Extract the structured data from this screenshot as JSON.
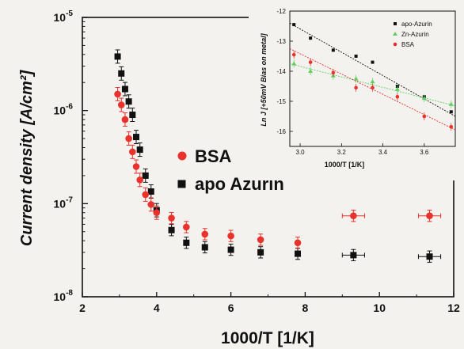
{
  "chart_data": [
    {
      "type": "scatter",
      "xlabel": "1000/T [1/K]",
      "ylabel": "Current density [A/cm²]",
      "yscale": "log",
      "xlim": [
        2,
        12
      ],
      "ylim": [
        1e-08,
        1e-05
      ],
      "x_ticks": [
        "2",
        "4",
        "6",
        "8",
        "10",
        "12"
      ],
      "y_ticks": [
        {
          "base": "10",
          "exp": "-8"
        },
        {
          "base": "10",
          "exp": "-7"
        },
        {
          "base": "10",
          "exp": "-6"
        },
        {
          "base": "10",
          "exp": "-5"
        }
      ],
      "legend_position": "middle-left",
      "series": [
        {
          "name": "BSA",
          "color": "#e8322b",
          "marker": "circle",
          "points": [
            {
              "x": 2.95,
              "y": 1.5e-06,
              "err": 0.18
            },
            {
              "x": 3.05,
              "y": 1.15e-06,
              "err": 0.18
            },
            {
              "x": 3.15,
              "y": 8e-07,
              "err": 0.18
            },
            {
              "x": 3.25,
              "y": 5e-07,
              "err": 0.18
            },
            {
              "x": 3.35,
              "y": 3.6e-07,
              "err": 0.18
            },
            {
              "x": 3.45,
              "y": 2.5e-07,
              "err": 0.18
            },
            {
              "x": 3.55,
              "y": 1.8e-07,
              "err": 0.18
            },
            {
              "x": 3.7,
              "y": 1.25e-07,
              "err": 0.18
            },
            {
              "x": 3.85,
              "y": 9.8e-08,
              "err": 0.18
            },
            {
              "x": 4.0,
              "y": 8e-08,
              "err": 0.18
            },
            {
              "x": 4.4,
              "y": 7e-08,
              "err": 0.15
            },
            {
              "x": 4.8,
              "y": 5.6e-08,
              "err": 0.15
            },
            {
              "x": 5.3,
              "y": 4.7e-08,
              "err": 0.15
            },
            {
              "x": 6.0,
              "y": 4.5e-08,
              "err": 0.15
            },
            {
              "x": 6.8,
              "y": 4.1e-08,
              "err": 0.15
            },
            {
              "x": 7.8,
              "y": 3.8e-08,
              "err": 0.15
            },
            {
              "x": 9.3,
              "y": 7.4e-08,
              "err": 0.15
            },
            {
              "x": 11.35,
              "y": 7.4e-08,
              "err": 0.15
            }
          ]
        },
        {
          "name": "apo Azurin",
          "color": "#111111",
          "marker": "square",
          "points": [
            {
              "x": 2.95,
              "y": 3.8e-06,
              "err": 0.18
            },
            {
              "x": 3.05,
              "y": 2.5e-06,
              "err": 0.18
            },
            {
              "x": 3.15,
              "y": 1.7e-06,
              "err": 0.18
            },
            {
              "x": 3.25,
              "y": 1.25e-06,
              "err": 0.18
            },
            {
              "x": 3.35,
              "y": 9e-07,
              "err": 0.18
            },
            {
              "x": 3.45,
              "y": 5.2e-07,
              "err": 0.18
            },
            {
              "x": 3.55,
              "y": 3.8e-07,
              "err": 0.18
            },
            {
              "x": 3.7,
              "y": 2e-07,
              "err": 0.18
            },
            {
              "x": 3.85,
              "y": 1.35e-07,
              "err": 0.18
            },
            {
              "x": 4.0,
              "y": 8.5e-08,
              "err": 0.18
            },
            {
              "x": 4.4,
              "y": 5.2e-08,
              "err": 0.15
            },
            {
              "x": 4.8,
              "y": 3.8e-08,
              "err": 0.15
            },
            {
              "x": 5.3,
              "y": 3.4e-08,
              "err": 0.15
            },
            {
              "x": 6.0,
              "y": 3.2e-08,
              "err": 0.15
            },
            {
              "x": 6.8,
              "y": 3e-08,
              "err": 0.15
            },
            {
              "x": 7.8,
              "y": 2.9e-08,
              "err": 0.15
            },
            {
              "x": 9.3,
              "y": 2.8e-08,
              "err": 0.15
            },
            {
              "x": 11.35,
              "y": 2.7e-08,
              "err": 0.15
            }
          ]
        }
      ]
    },
    {
      "type": "scatter",
      "xlabel": "1000/T [1/K]",
      "ylabel": "Ln J [+50mV Bias on metal]",
      "xlim": [
        2.95,
        3.75
      ],
      "ylim": [
        -16.5,
        -12
      ],
      "x_ticks": [
        "3.0",
        "3.2",
        "3.4",
        "3.6"
      ],
      "y_ticks": [
        "-12",
        "-13",
        "-14",
        "-15",
        "-16"
      ],
      "legend_position": "top-right",
      "series": [
        {
          "name": "apo-Azurin",
          "color": "#111111",
          "marker": "square",
          "points": [
            {
              "x": 2.97,
              "y": -12.45
            },
            {
              "x": 3.05,
              "y": -12.9
            },
            {
              "x": 3.16,
              "y": -13.3
            },
            {
              "x": 3.27,
              "y": -13.5
            },
            {
              "x": 3.35,
              "y": -13.7
            },
            {
              "x": 3.47,
              "y": -14.5
            },
            {
              "x": 3.6,
              "y": -14.85
            },
            {
              "x": 3.73,
              "y": -15.35
            }
          ],
          "fit": [
            [
              2.95,
              -12.4
            ],
            [
              3.75,
              -15.5
            ]
          ]
        },
        {
          "name": "Zn-Azurin",
          "color": "#5fcf5f",
          "marker": "triangle",
          "points": [
            {
              "x": 2.97,
              "y": -13.75
            },
            {
              "x": 3.05,
              "y": -14.0
            },
            {
              "x": 3.16,
              "y": -14.15
            },
            {
              "x": 3.27,
              "y": -14.25
            },
            {
              "x": 3.35,
              "y": -14.35
            },
            {
              "x": 3.47,
              "y": -14.6
            },
            {
              "x": 3.6,
              "y": -14.9
            },
            {
              "x": 3.73,
              "y": -15.1
            }
          ],
          "fit": [
            [
              2.95,
              -13.75
            ],
            [
              3.75,
              -15.15
            ]
          ]
        },
        {
          "name": "BSA",
          "color": "#e8322b",
          "marker": "circle",
          "points": [
            {
              "x": 2.97,
              "y": -13.45
            },
            {
              "x": 3.05,
              "y": -13.7
            },
            {
              "x": 3.16,
              "y": -14.05
            },
            {
              "x": 3.27,
              "y": -14.55
            },
            {
              "x": 3.35,
              "y": -14.55
            },
            {
              "x": 3.47,
              "y": -14.85
            },
            {
              "x": 3.6,
              "y": -15.5
            },
            {
              "x": 3.73,
              "y": -15.85
            }
          ],
          "fit": [
            [
              2.95,
              -13.25
            ],
            [
              3.75,
              -15.95
            ]
          ]
        }
      ]
    }
  ]
}
